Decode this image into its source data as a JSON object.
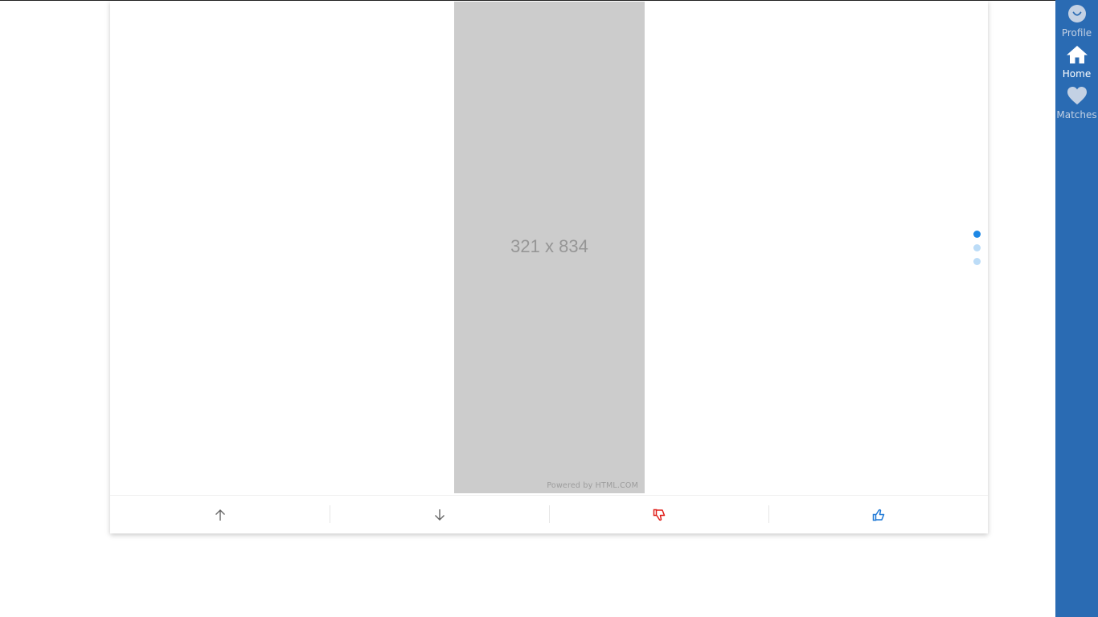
{
  "media": {
    "placeholder_label": "321 x 834",
    "credit": "Powered by HTML.COM",
    "pager": {
      "count": 3,
      "active_index": 0
    }
  },
  "actions": {
    "up": {
      "icon": "arrow-up-icon"
    },
    "down": {
      "icon": "arrow-down-icon"
    },
    "dislike": {
      "icon": "thumbs-down-icon"
    },
    "like": {
      "icon": "thumbs-up-icon"
    }
  },
  "sidebar": {
    "items": [
      {
        "label": "Profile",
        "icon": "smiley-icon"
      },
      {
        "label": "Home",
        "icon": "home-icon",
        "active": true
      },
      {
        "label": "Matches",
        "icon": "heart-icon"
      }
    ]
  },
  "colors": {
    "sidebar_bg": "#2a6bb3",
    "accent_blue": "#1e88e5",
    "dislike_red": "#e0201b",
    "placeholder_gray": "#cccccc"
  }
}
